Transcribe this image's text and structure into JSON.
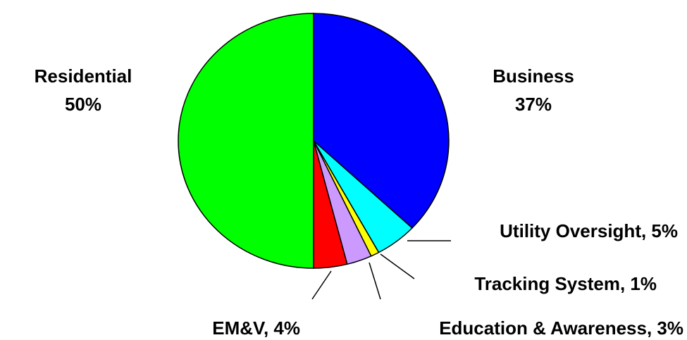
{
  "chart_data": {
    "type": "pie",
    "categories": [
      "Business",
      "Utility Oversight, 5%",
      "Tracking System, 1%",
      "Education & Awareness, 3%",
      "EM&V, 4%",
      "Residential"
    ],
    "values": [
      37,
      5,
      1,
      3,
      4,
      50
    ],
    "value_labels": [
      "37%",
      null,
      null,
      null,
      null,
      "50%"
    ],
    "colors": [
      "#0000ff",
      "#00ffff",
      "#ffff00",
      "#cc99ff",
      "#ff0000",
      "#00ff00"
    ]
  }
}
